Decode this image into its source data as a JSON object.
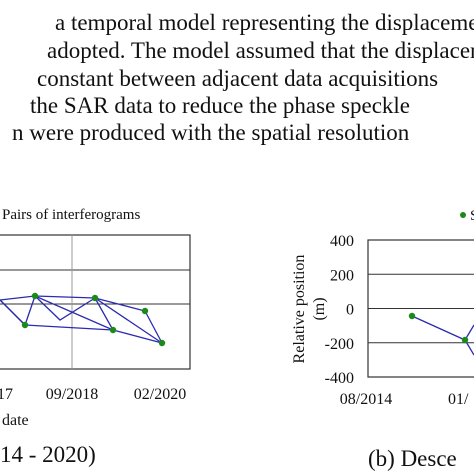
{
  "paragraph": {
    "lines": [
      "a temporal model representing the displacement",
      "adopted. The model assumed that the displacement",
      "constant between adjacent data acquisitions",
      "the SAR data to reduce the phase speckle",
      "n were produced with the spatial resolution"
    ]
  },
  "figure_a": {
    "legend": "Pairs of interferograms",
    "xticks": [
      "17",
      "09/2018",
      "02/2020"
    ],
    "xlabel": "date",
    "caption": "14 - 2020)"
  },
  "figure_b": {
    "legend": "S",
    "ylabel": [
      "Relative position",
      "(m)"
    ],
    "ylim": [
      -400,
      400
    ],
    "yticks": [
      -400,
      -200,
      0,
      200,
      400
    ],
    "xticks": [
      "08/2014",
      "01/"
    ],
    "caption": "(b) Desce"
  }
}
